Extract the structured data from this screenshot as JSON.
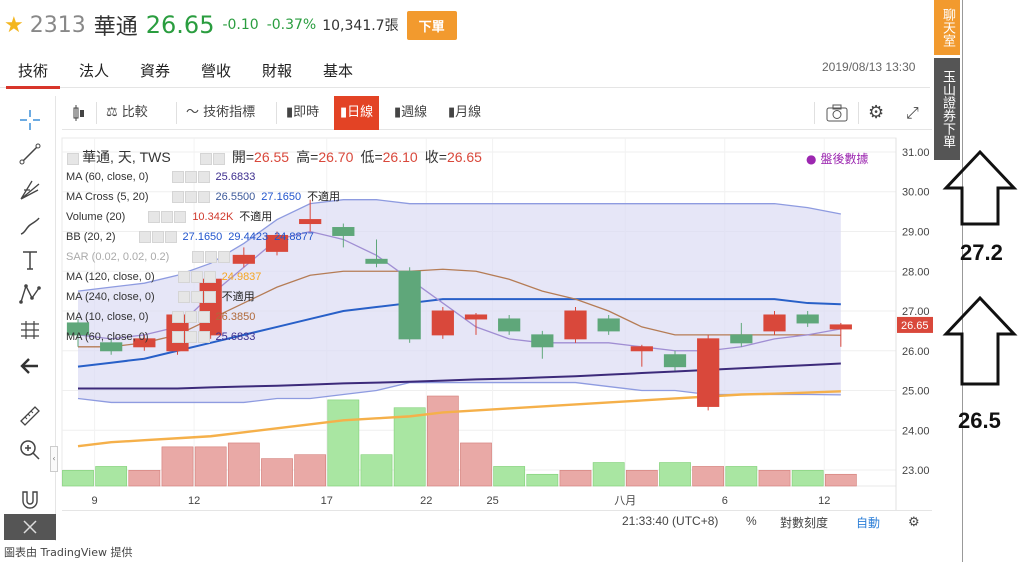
{
  "header": {
    "code": "2313",
    "name": "華通",
    "price": "26.65",
    "change": "-0.10",
    "change_pct": "-0.37%",
    "volume": "10,341.7張",
    "order_button": "下單"
  },
  "tabs": [
    {
      "label": "技術",
      "active": true
    },
    {
      "label": "法人"
    },
    {
      "label": "資券"
    },
    {
      "label": "營收"
    },
    {
      "label": "財報"
    },
    {
      "label": "基本"
    }
  ],
  "datetime": "2019/08/13 13:30",
  "side": {
    "chat": "聊天室",
    "broker": "玉山證券下單"
  },
  "annotations": {
    "upper": "27.2",
    "lower": "26.5"
  },
  "toolbar": {
    "compare": "比較",
    "indicators": "技術指標",
    "intraday": "即時",
    "daily": "日線",
    "weekly": "週線",
    "monthly": "月線"
  },
  "legend": {
    "title": "華通, 天, TWS",
    "ohlc": {
      "open_label": "開=",
      "open": "26.55",
      "high_label": "高=",
      "high": "26.70",
      "low_label": "低=",
      "low": "26.10",
      "close_label": "收=",
      "close": "26.65"
    },
    "rows": [
      {
        "name": "MA (60, close, 0)",
        "values": [
          "25.6833"
        ],
        "colors": [
          "#3d2f8f"
        ]
      },
      {
        "name": "MA Cross (5, 20)",
        "values": [
          "26.5500",
          "27.1650",
          "不適用"
        ],
        "colors": [
          "#3d5a9a",
          "#2255cc",
          "#222222"
        ]
      },
      {
        "name": "Volume (20)",
        "values": [
          "10.342K",
          "不適用"
        ],
        "colors": [
          "#d03a2e",
          "#222222"
        ]
      },
      {
        "name": "BB (20, 2)",
        "values": [
          "27.1650",
          "29.4423",
          "24.8877"
        ],
        "colors": [
          "#2255cc",
          "#2255cc",
          "#2255cc"
        ]
      },
      {
        "name": "SAR (0.02, 0.02, 0.2)",
        "values": [],
        "colors": []
      },
      {
        "name": "MA (120, close, 0)",
        "values": [
          "24.9837"
        ],
        "colors": [
          "#f5a623"
        ]
      },
      {
        "name": "MA (240, close, 0)",
        "values": [
          "不適用"
        ],
        "colors": [
          "#222222"
        ]
      },
      {
        "name": "MA (10, close, 0)",
        "values": [
          "26.3850"
        ],
        "colors": [
          "#b06a3a"
        ]
      },
      {
        "name": "MA (60, close, 0)",
        "values": [
          "25.6833"
        ],
        "colors": [
          "#3d2f8f"
        ]
      }
    ],
    "after_hours": "盤後數據"
  },
  "bottom": {
    "time": "21:33:40 (UTC+8)",
    "percent": "%",
    "log": "對數刻度",
    "auto": "自動"
  },
  "credit": "圖表由 TradingView 提供",
  "colors": {
    "up": "#d9483b",
    "down": "#5fa77a",
    "accent": "#e34325",
    "orange": "#f29a2e"
  },
  "chart_data": {
    "type": "candlestick",
    "y_ticks": [
      "31.00",
      "30.00",
      "29.00",
      "28.00",
      "27.00",
      "26.00",
      "25.00",
      "24.00",
      "23.00"
    ],
    "x_ticks": [
      "9",
      "12",
      "17",
      "22",
      "25",
      "八月",
      "6",
      "12"
    ],
    "last_price_label": "26.65",
    "ylim": [
      22.8,
      31.1
    ],
    "candles": [
      {
        "o": 26.7,
        "c": 26.4,
        "h": 26.8,
        "l": 26.1
      },
      {
        "o": 26.2,
        "c": 26.0,
        "h": 26.3,
        "l": 25.9
      },
      {
        "o": 26.1,
        "c": 26.3,
        "h": 26.4,
        "l": 26.0
      },
      {
        "o": 26.0,
        "c": 26.9,
        "h": 27.0,
        "l": 25.9
      },
      {
        "o": 26.4,
        "c": 27.8,
        "h": 27.9,
        "l": 26.3
      },
      {
        "o": 28.2,
        "c": 28.4,
        "h": 28.6,
        "l": 28.1
      },
      {
        "o": 28.5,
        "c": 28.9,
        "h": 29.0,
        "l": 28.4
      },
      {
        "o": 29.2,
        "c": 29.3,
        "h": 29.8,
        "l": 29.0
      },
      {
        "o": 29.1,
        "c": 28.9,
        "h": 29.2,
        "l": 28.6
      },
      {
        "o": 28.3,
        "c": 28.2,
        "h": 28.8,
        "l": 28.1
      },
      {
        "o": 28.0,
        "c": 26.3,
        "h": 28.1,
        "l": 26.2
      },
      {
        "o": 26.4,
        "c": 27.0,
        "h": 27.1,
        "l": 26.3
      },
      {
        "o": 26.8,
        "c": 26.9,
        "h": 26.95,
        "l": 26.4
      },
      {
        "o": 26.8,
        "c": 26.5,
        "h": 26.9,
        "l": 26.4
      },
      {
        "o": 26.4,
        "c": 26.1,
        "h": 26.5,
        "l": 25.8
      },
      {
        "o": 26.3,
        "c": 27.0,
        "h": 27.1,
        "l": 26.2
      },
      {
        "o": 26.8,
        "c": 26.5,
        "h": 26.9,
        "l": 26.4
      },
      {
        "o": 26.0,
        "c": 26.1,
        "h": 26.15,
        "l": 25.6
      },
      {
        "o": 25.9,
        "c": 25.6,
        "h": 26.0,
        "l": 25.5
      },
      {
        "o": 24.6,
        "c": 26.3,
        "h": 26.4,
        "l": 24.5
      },
      {
        "o": 26.4,
        "c": 26.2,
        "h": 26.7,
        "l": 26.1
      },
      {
        "o": 26.5,
        "c": 26.9,
        "h": 27.0,
        "l": 26.4
      },
      {
        "o": 26.9,
        "c": 26.7,
        "h": 27.0,
        "l": 26.6
      },
      {
        "o": 26.55,
        "c": 26.65,
        "h": 26.7,
        "l": 26.1
      }
    ],
    "volume": [
      4,
      5,
      4,
      10,
      10,
      11,
      7,
      8,
      22,
      8,
      20,
      23,
      11,
      5,
      3,
      4,
      6,
      4,
      6,
      5,
      5,
      4,
      4,
      3
    ],
    "series": [
      {
        "name": "BB upper",
        "values": [
          27.5,
          27.6,
          27.7,
          27.9,
          28.2,
          28.7,
          29.3,
          29.7,
          29.8,
          29.8,
          29.7,
          29.7,
          29.7,
          29.7,
          29.7,
          29.7,
          29.7,
          29.7,
          29.7,
          29.7,
          29.7,
          29.7,
          29.6,
          29.44
        ]
      },
      {
        "name": "BB lower",
        "values": [
          24.8,
          24.7,
          24.7,
          24.7,
          24.7,
          24.7,
          24.8,
          24.8,
          24.9,
          25.0,
          25.2,
          25.2,
          25.2,
          25.2,
          25.2,
          25.2,
          25.1,
          25.0,
          25.0,
          24.9,
          24.9,
          24.9,
          24.9,
          24.89
        ]
      },
      {
        "name": "MA20",
        "values": [
          25.6,
          25.7,
          25.8,
          26.0,
          26.2,
          26.4,
          26.6,
          26.8,
          27.0,
          27.1,
          27.2,
          27.3,
          27.3,
          27.3,
          27.3,
          27.3,
          27.3,
          27.3,
          27.3,
          27.3,
          27.3,
          27.3,
          27.2,
          27.17
        ]
      },
      {
        "name": "MA10",
        "values": [
          26.1,
          26.1,
          26.2,
          26.4,
          26.8,
          27.2,
          27.6,
          27.9,
          28.0,
          28.0,
          28.0,
          28.05,
          28.0,
          27.8,
          27.5,
          27.3,
          27.0,
          26.6,
          26.4,
          26.4,
          26.4,
          26.4,
          26.4,
          26.39
        ]
      },
      {
        "name": "MA5",
        "values": [
          26.4,
          26.3,
          26.4,
          26.6,
          27.4,
          28.1,
          28.8,
          29.0,
          28.8,
          28.4,
          27.8,
          27.2,
          26.6,
          26.3,
          26.2,
          26.2,
          26.2,
          26.1,
          26.0,
          26.0,
          26.1,
          26.3,
          26.4,
          26.55
        ]
      },
      {
        "name": "MA60",
        "values": [
          25.05,
          25.05,
          25.05,
          25.05,
          25.08,
          25.1,
          25.12,
          25.15,
          25.18,
          25.2,
          25.22,
          25.25,
          25.28,
          25.3,
          25.33,
          25.36,
          25.4,
          25.44,
          25.48,
          25.52,
          25.56,
          25.6,
          25.64,
          25.68
        ]
      },
      {
        "name": "MA120",
        "values": [
          23.6,
          23.7,
          23.75,
          23.8,
          23.85,
          23.95,
          24.05,
          24.15,
          24.25,
          24.3,
          24.35,
          24.45,
          24.5,
          24.55,
          24.6,
          24.65,
          24.7,
          24.75,
          24.8,
          24.85,
          24.9,
          24.92,
          24.95,
          24.98
        ]
      }
    ]
  }
}
